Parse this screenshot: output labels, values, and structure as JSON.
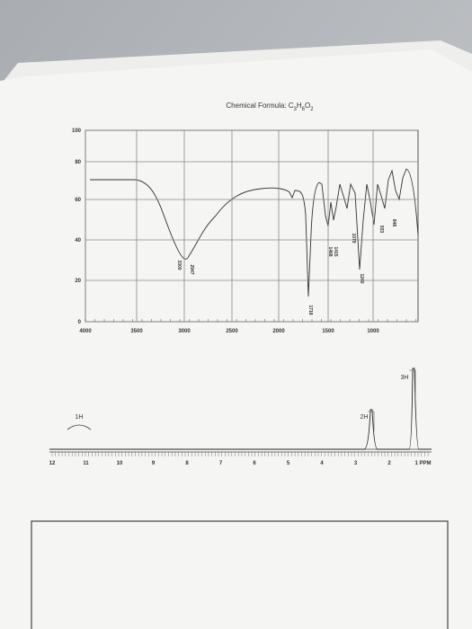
{
  "header": {
    "formula_label": "Chemical Formula: ",
    "formula": [
      "C",
      "3",
      "H",
      "6",
      "O",
      "2"
    ]
  },
  "ir": {
    "y_ticks": [
      "100",
      "80",
      "60",
      "40",
      "20",
      "0"
    ],
    "x_ticks": [
      "4000",
      "3500",
      "3000",
      "2500",
      "2000",
      "1500",
      "1000"
    ],
    "peaks": [
      "3300",
      "2947",
      "1718",
      "1468",
      "1415",
      "1240",
      "1079",
      "933",
      "848"
    ]
  },
  "nmr": {
    "integrals": [
      "1H",
      "2H",
      "3H"
    ],
    "axis": [
      "12",
      "11",
      "10",
      "9",
      "8",
      "7",
      "6",
      "5",
      "4",
      "3",
      "2",
      "1 PPM"
    ]
  }
}
